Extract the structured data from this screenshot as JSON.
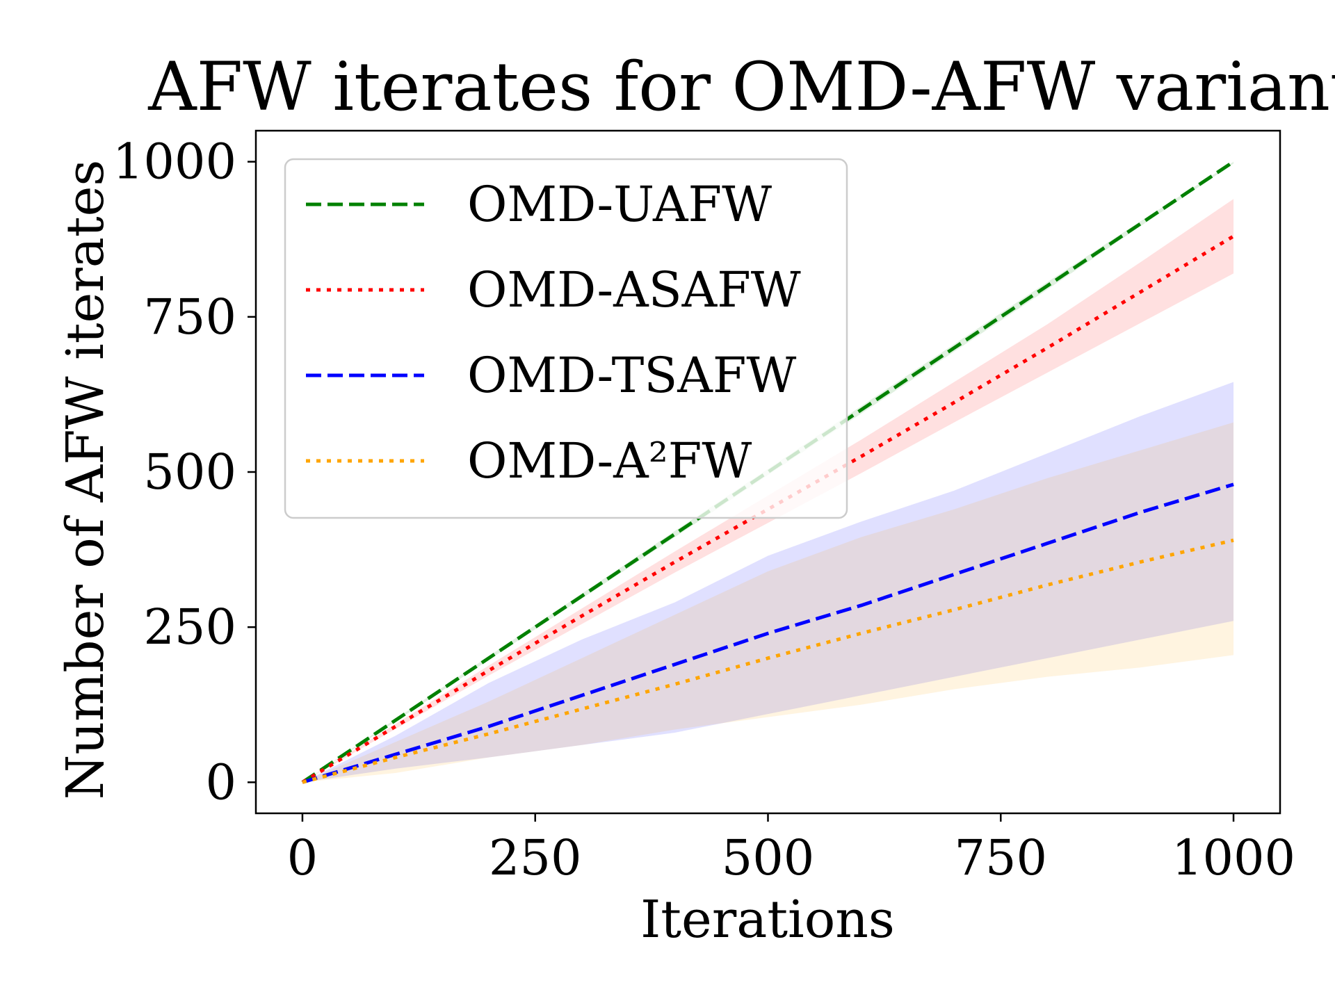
{
  "chart_data": {
    "type": "line",
    "title": "AFW iterates for OMD-AFW variants",
    "xlabel": "Iterations",
    "ylabel": "Number of AFW iterates",
    "xlim": [
      -50,
      1050
    ],
    "ylim": [
      -50,
      1050
    ],
    "xticks": [
      0,
      250,
      500,
      750,
      1000
    ],
    "yticks": [
      0,
      250,
      500,
      750,
      1000
    ],
    "xtick_labels": [
      "0",
      "250",
      "500",
      "750",
      "1000"
    ],
    "ytick_labels": [
      "0",
      "250",
      "500",
      "750",
      "1000"
    ],
    "grid": false,
    "legend_position": "upper-left",
    "x": [
      0,
      100,
      200,
      300,
      400,
      500,
      600,
      700,
      800,
      900,
      1000
    ],
    "series": [
      {
        "name": "OMD-UAFW",
        "color": "#008000",
        "style": "dashed",
        "values": [
          0,
          100,
          200,
          300,
          400,
          500,
          600,
          700,
          800,
          900,
          1000
        ],
        "lower": [
          0,
          98,
          197,
          296,
          395,
          495,
          594,
          694,
          794,
          896,
          997
        ],
        "upper": [
          0,
          102,
          203,
          304,
          405,
          505,
          606,
          706,
          806,
          904,
          1000
        ]
      },
      {
        "name": "OMD-ASAFW",
        "color": "#ff0000",
        "style": "dotted",
        "values": [
          0,
          90,
          180,
          268,
          355,
          440,
          525,
          612,
          700,
          790,
          880
        ],
        "lower": [
          0,
          86,
          172,
          255,
          338,
          418,
          498,
          580,
          660,
          740,
          820
        ],
        "upper": [
          0,
          94,
          188,
          280,
          372,
          462,
          552,
          645,
          738,
          838,
          940
        ]
      },
      {
        "name": "OMD-TSAFW",
        "color": "#0000ff",
        "style": "dashed",
        "values": [
          0,
          45,
          90,
          140,
          190,
          240,
          285,
          335,
          385,
          435,
          480
        ],
        "lower": [
          0,
          22,
          40,
          60,
          80,
          110,
          140,
          170,
          200,
          230,
          260
        ],
        "upper": [
          0,
          75,
          160,
          230,
          290,
          365,
          420,
          470,
          530,
          590,
          645
        ]
      },
      {
        "name": "OMD-A²FW",
        "color": "#ffa500",
        "style": "dotted",
        "values": [
          0,
          40,
          78,
          118,
          158,
          200,
          240,
          278,
          318,
          355,
          390
        ],
        "lower": [
          0,
          15,
          40,
          60,
          85,
          105,
          125,
          150,
          170,
          185,
          205
        ],
        "upper": [
          0,
          65,
          130,
          200,
          270,
          340,
          395,
          440,
          490,
          535,
          580
        ]
      }
    ]
  }
}
